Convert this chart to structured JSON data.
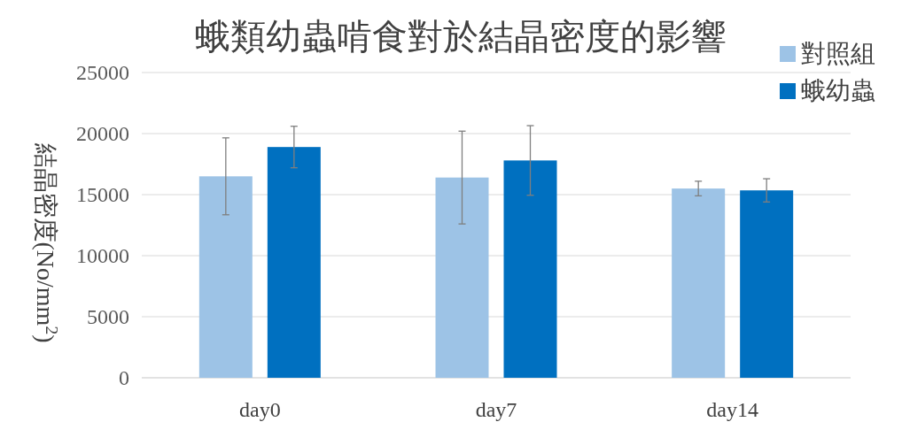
{
  "chart_data": {
    "type": "bar",
    "title": "蛾類幼蟲啃食對於結晶密度的影響",
    "ylabel": "結晶密度(No/mm$^{2}$)",
    "categories": [
      "day0",
      "day7",
      "day14"
    ],
    "series": [
      {
        "name": "對照組",
        "color": "#9dc3e6",
        "values": [
          16500,
          16400,
          15500
        ],
        "errors": [
          3150,
          3800,
          600
        ]
      },
      {
        "name": "蛾幼蟲",
        "color": "#0070c0",
        "values": [
          18900,
          17800,
          15350
        ],
        "errors": [
          1700,
          2850,
          950
        ]
      }
    ],
    "ylim": [
      0,
      25000
    ],
    "yticks": [
      0,
      5000,
      10000,
      15000,
      20000,
      25000
    ],
    "grid": "y",
    "legend": "top right"
  }
}
